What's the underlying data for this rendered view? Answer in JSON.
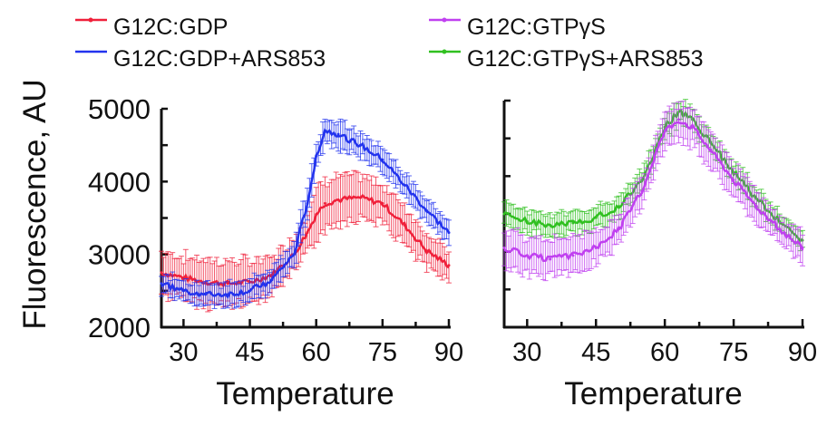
{
  "legend": [
    {
      "label": "G12C:GDP",
      "color": "#f0203a"
    },
    {
      "label": "G12C:GDP+ARS853",
      "color": "#2233ee"
    },
    {
      "label": "G12C:GTPγS",
      "color": "#c040f0"
    },
    {
      "label": "G12C:GTPγS+ARS853",
      "color": "#30c020"
    }
  ],
  "chart_data": [
    {
      "type": "line",
      "panel": "left",
      "title": "",
      "xlabel": "Temperature",
      "ylabel": "Fluorescence, AU",
      "xlim": [
        25,
        90
      ],
      "ylim": [
        2000,
        5000
      ],
      "xticks": [
        30,
        45,
        60,
        75,
        90
      ],
      "yticks": [
        2000,
        3000,
        4000,
        5000
      ],
      "grid": false,
      "error_bars": true,
      "x": [
        25,
        30,
        35,
        40,
        45,
        50,
        55,
        58,
        60,
        62,
        65,
        70,
        75,
        80,
        85,
        90
      ],
      "series": [
        {
          "name": "G12C:GDP",
          "color": "#f0203a",
          "values": [
            2750,
            2680,
            2620,
            2600,
            2620,
            2720,
            3000,
            3300,
            3550,
            3700,
            3750,
            3780,
            3700,
            3400,
            3050,
            2850
          ],
          "error": [
            300,
            300,
            320,
            320,
            300,
            250,
            250,
            300,
            350,
            350,
            330,
            300,
            280,
            280,
            250,
            200
          ]
        },
        {
          "name": "G12C:GDP+ARS853",
          "color": "#2233ee",
          "values": [
            2600,
            2500,
            2450,
            2450,
            2500,
            2650,
            3000,
            3700,
            4350,
            4700,
            4650,
            4500,
            4300,
            3950,
            3600,
            3300
          ],
          "error": [
            150,
            150,
            150,
            150,
            150,
            150,
            180,
            200,
            200,
            200,
            200,
            180,
            170,
            170,
            150,
            150
          ]
        }
      ]
    },
    {
      "type": "line",
      "panel": "right",
      "title": "",
      "xlabel": "Temperature",
      "ylabel": "",
      "xlim": [
        25,
        90
      ],
      "ylim": [
        2000,
        5000
      ],
      "xticks": [
        30,
        45,
        60,
        75,
        90
      ],
      "yticks": [
        2000,
        2500,
        3000,
        3500,
        4000,
        4500,
        5000
      ],
      "grid": false,
      "error_bars": true,
      "x": [
        25,
        30,
        35,
        40,
        45,
        50,
        55,
        58,
        60,
        63,
        66,
        70,
        75,
        80,
        85,
        90
      ],
      "series": [
        {
          "name": "G12C:GTPγS+ARS853",
          "color": "#30c020",
          "values": [
            3500,
            3400,
            3350,
            3380,
            3450,
            3600,
            3950,
            4350,
            4650,
            4850,
            4750,
            4450,
            4050,
            3700,
            3400,
            3150
          ],
          "error": [
            150,
            150,
            150,
            150,
            150,
            150,
            150,
            150,
            150,
            150,
            150,
            150,
            150,
            150,
            120,
            120
          ]
        },
        {
          "name": "G12C:GTPγS",
          "color": "#c040f0",
          "values": [
            3050,
            2950,
            2900,
            2950,
            3050,
            3300,
            3800,
            4300,
            4600,
            4750,
            4650,
            4350,
            3950,
            3600,
            3300,
            3050
          ],
          "error": [
            250,
            250,
            250,
            250,
            230,
            200,
            200,
            200,
            230,
            250,
            250,
            230,
            220,
            220,
            200,
            200
          ]
        }
      ]
    }
  ]
}
